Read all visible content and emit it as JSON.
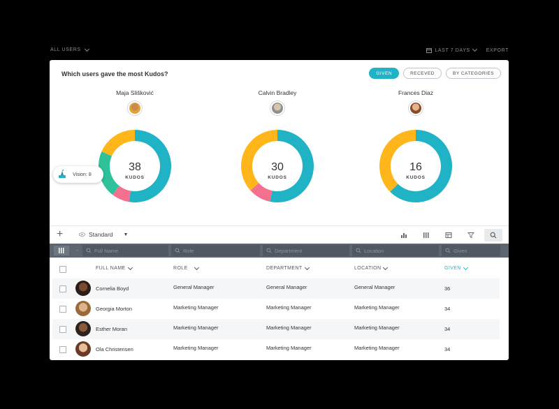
{
  "topbar": {
    "filter_label": "ALL USERS",
    "period_label": "LAST 7 DAYS",
    "export_label": "EXPORT"
  },
  "card": {
    "title": "Which users gave the most Kudos?",
    "toggles": [
      {
        "label": "GIVEN",
        "active": true
      },
      {
        "label": "RECEVED",
        "active": false
      },
      {
        "label": "BY CATEGORIES",
        "active": false
      }
    ]
  },
  "donuts": [
    {
      "name": "Maja Slišković",
      "total": "38",
      "unit": "KUDOS",
      "segments": [
        {
          "value": 20,
          "color": "#20b2c5"
        },
        {
          "value": 3,
          "color": "#f56f8f"
        },
        {
          "value": 8,
          "color": "#2fc29a"
        },
        {
          "value": 7,
          "color": "#ffb61a"
        }
      ]
    },
    {
      "name": "Calvin Bradley",
      "total": "30",
      "unit": "KUDOS",
      "segments": [
        {
          "value": 16,
          "color": "#20b2c5"
        },
        {
          "value": 3,
          "color": "#f56f8f"
        },
        {
          "value": 11,
          "color": "#ffb61a"
        }
      ]
    },
    {
      "name": "Frances Diaz",
      "total": "16",
      "unit": "KUDOS",
      "segments": [
        {
          "value": 10,
          "color": "#20b2c5"
        },
        {
          "value": 6,
          "color": "#ffb61a"
        }
      ]
    }
  ],
  "tooltip": {
    "label": "Vision: 8"
  },
  "toolbar": {
    "view_label": "Standard"
  },
  "filters": {
    "full_name": "Full Name",
    "role": "Role",
    "department": "Department",
    "location": "Location",
    "given": "Given"
  },
  "columns": {
    "full_name": "FULL NAME",
    "role": "ROLE",
    "department": "DEPARTMENT",
    "location": "LOCATION",
    "given": "GIVEN"
  },
  "rows": [
    {
      "name": "Cornelia Boyd",
      "role": "General Manager",
      "department": "General Manager",
      "location": "General Manager",
      "given": "36"
    },
    {
      "name": "Georgia Morton",
      "role": "Marketing Manager",
      "department": "Marketing Manager",
      "location": "Marketing Manager",
      "given": "34"
    },
    {
      "name": "Esther Moran",
      "role": "Marketing Manager",
      "department": "Marketing Manager",
      "location": "Marketing Manager",
      "given": "34"
    },
    {
      "name": "Ola Christensen",
      "role": "Marketing Manager",
      "department": "Marketing Manager",
      "location": "Marketing Manager",
      "given": "34"
    }
  ]
}
